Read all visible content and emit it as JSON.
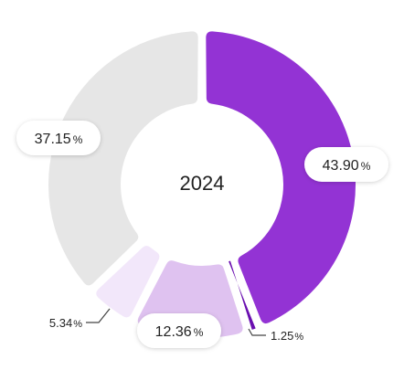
{
  "chart_data": {
    "type": "pie",
    "center_label": "2024",
    "title": "",
    "legend": "none",
    "slices": [
      {
        "value": 43.9,
        "label": "43.90",
        "unit": "%",
        "color": "#9333d4"
      },
      {
        "value": 1.25,
        "label": "1.25",
        "unit": "%",
        "color": "#6a0fb0"
      },
      {
        "value": 12.36,
        "label": "12.36",
        "unit": "%",
        "color": "#dfc2f0"
      },
      {
        "value": 5.34,
        "label": "5.34",
        "unit": "%",
        "color": "#f2e7fa"
      },
      {
        "value": 37.15,
        "label": "37.15",
        "unit": "%",
        "color": "#e6e6e6"
      }
    ]
  }
}
